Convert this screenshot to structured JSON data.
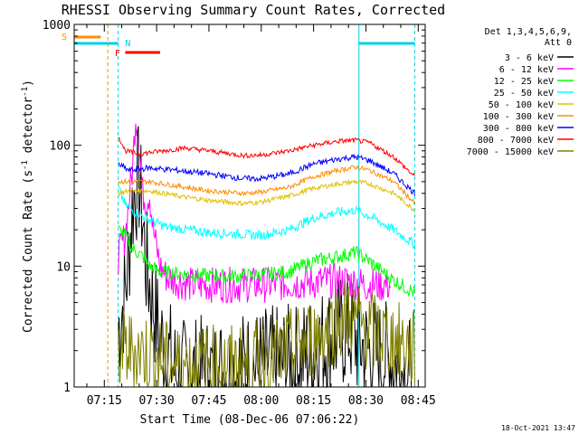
{
  "chart_data": {
    "type": "line",
    "title": "RHESSI Observing Summary Count Rates, Corrected",
    "xlabel": "Start Time (08-Dec-06 07:06:22)",
    "ylabel_main": "Corrected Count Rate (s",
    "ylabel_sup": "-1",
    "ylabel_tail": " detector",
    "ylabel_end": ")",
    "yscale": "log",
    "xlim": [
      "07:06:22",
      "08:47:00"
    ],
    "ylim": [
      1,
      1000
    ],
    "x_ticks": [
      "07:15",
      "07:30",
      "07:45",
      "08:00",
      "08:15",
      "08:30",
      "08:45"
    ],
    "y_ticks": [
      "1",
      "10",
      "100",
      "1000"
    ],
    "legend_header": [
      "Det 1,3,4,5,6,9,",
      "Att 0"
    ],
    "legend_position": "right",
    "footer": "18-Oct-2021 13:47",
    "annotations": [
      {
        "label": "S",
        "color": "#ff8c00"
      },
      {
        "label": "N",
        "color": "#00d0e0"
      },
      {
        "label": "F",
        "color": "#ff0000"
      }
    ],
    "state_bars": [
      {
        "label": "S",
        "start": "07:06:22",
        "end": "07:14:00",
        "color": "#ff8c00"
      },
      {
        "label": "N",
        "start": "07:06:22",
        "end": "07:19:00",
        "color": "#00d0e0"
      },
      {
        "label": "N",
        "start": "08:28:00",
        "end": "08:44:00",
        "color": "#00d0e0"
      },
      {
        "label": "F",
        "start": "07:21:00",
        "end": "07:31:00",
        "color": "#ff0000"
      }
    ],
    "vlines": [
      {
        "time": "07:06:22",
        "color": "#00d0e0",
        "style": "solid"
      },
      {
        "time": "07:16:00",
        "color": "#ff8c00",
        "style": "dashed"
      },
      {
        "time": "07:19:00",
        "color": "#00d0e0",
        "style": "dashed"
      },
      {
        "time": "08:28:00",
        "color": "#00d0e0",
        "style": "solid"
      },
      {
        "time": "08:44:00",
        "color": "#00d0e0",
        "style": "dashed"
      }
    ],
    "series": [
      {
        "name": "3 - 6 keV",
        "color": "#000000",
        "noise": 0.5,
        "points": [
          [
            "07:19",
            3
          ],
          [
            "07:21",
            6
          ],
          [
            "07:22",
            12
          ],
          [
            "07:23",
            30
          ],
          [
            "07:24",
            45
          ],
          [
            "07:25",
            50
          ],
          [
            "07:26",
            25
          ],
          [
            "07:27",
            10
          ],
          [
            "07:29",
            5
          ],
          [
            "07:31",
            2.5
          ],
          [
            "07:33",
            2
          ],
          [
            "07:36",
            1.2
          ],
          [
            "07:45",
            1.3
          ],
          [
            "08:00",
            1.5
          ],
          [
            "08:10",
            1.6
          ],
          [
            "08:20",
            2.5
          ],
          [
            "08:25",
            3
          ],
          [
            "08:27",
            2.5
          ],
          [
            "08:30",
            2
          ],
          [
            "08:38",
            1.6
          ],
          [
            "08:43",
            1.2
          ]
        ]
      },
      {
        "name": "6 - 12 keV",
        "color": "#ff00ff",
        "noise": 0.15,
        "points": [
          [
            "07:19",
            12
          ],
          [
            "07:21",
            18
          ],
          [
            "07:23",
            60
          ],
          [
            "07:24",
            180
          ],
          [
            "07:25",
            100
          ],
          [
            "07:26",
            40
          ],
          [
            "07:27",
            35
          ],
          [
            "07:28",
            40
          ],
          [
            "07:29",
            20
          ],
          [
            "07:31",
            10
          ],
          [
            "07:33",
            8
          ],
          [
            "07:40",
            7
          ],
          [
            "08:00",
            7
          ],
          [
            "08:20",
            7.5
          ],
          [
            "08:25",
            7.5
          ],
          [
            "08:30",
            7
          ],
          [
            "08:37",
            7
          ]
        ]
      },
      {
        "name": "12 - 25 keV",
        "color": "#00ff00",
        "noise": 0.06,
        "points": [
          [
            "07:19",
            20
          ],
          [
            "07:21",
            18
          ],
          [
            "07:23",
            14
          ],
          [
            "07:26",
            12
          ],
          [
            "07:28",
            10
          ],
          [
            "07:31",
            9
          ],
          [
            "07:40",
            8.5
          ],
          [
            "07:50",
            8.2
          ],
          [
            "08:00",
            8.5
          ],
          [
            "08:08",
            9
          ],
          [
            "08:15",
            11
          ],
          [
            "08:22",
            12
          ],
          [
            "08:27",
            13
          ],
          [
            "08:31",
            11
          ],
          [
            "08:37",
            8
          ],
          [
            "08:44",
            6
          ]
        ]
      },
      {
        "name": "25 - 50 keV",
        "color": "#00ffff",
        "noise": 0.04,
        "points": [
          [
            "07:19",
            45
          ],
          [
            "07:21",
            32
          ],
          [
            "07:24",
            28
          ],
          [
            "07:28",
            24
          ],
          [
            "07:33",
            21
          ],
          [
            "07:45",
            19
          ],
          [
            "08:00",
            18
          ],
          [
            "08:08",
            20
          ],
          [
            "08:15",
            25
          ],
          [
            "08:22",
            28
          ],
          [
            "08:27",
            29
          ],
          [
            "08:31",
            26
          ],
          [
            "08:38",
            20
          ],
          [
            "08:44",
            15
          ]
        ]
      },
      {
        "name": "50 - 100 keV",
        "color": "#e0c000",
        "noise": 0.02,
        "points": [
          [
            "07:19",
            40
          ],
          [
            "07:22",
            42
          ],
          [
            "07:28",
            42
          ],
          [
            "07:36",
            38
          ],
          [
            "07:45",
            35
          ],
          [
            "07:55",
            33
          ],
          [
            "08:00",
            34
          ],
          [
            "08:08",
            38
          ],
          [
            "08:15",
            44
          ],
          [
            "08:22",
            48
          ],
          [
            "08:27",
            50
          ],
          [
            "08:31",
            48
          ],
          [
            "08:38",
            40
          ],
          [
            "08:44",
            29
          ]
        ]
      },
      {
        "name": "100 - 300 keV",
        "color": "#ff8c00",
        "noise": 0.02,
        "points": [
          [
            "07:19",
            50
          ],
          [
            "07:22",
            50
          ],
          [
            "07:28",
            50
          ],
          [
            "07:36",
            46
          ],
          [
            "07:45",
            42
          ],
          [
            "07:55",
            40
          ],
          [
            "08:00",
            41
          ],
          [
            "08:08",
            45
          ],
          [
            "08:15",
            55
          ],
          [
            "08:22",
            62
          ],
          [
            "08:27",
            66
          ],
          [
            "08:31",
            62
          ],
          [
            "08:38",
            50
          ],
          [
            "08:44",
            33
          ]
        ]
      },
      {
        "name": "300 - 800 keV",
        "color": "#0000ff",
        "noise": 0.025,
        "points": [
          [
            "07:19",
            70
          ],
          [
            "07:22",
            62
          ],
          [
            "07:28",
            65
          ],
          [
            "07:36",
            62
          ],
          [
            "07:45",
            58
          ],
          [
            "07:55",
            53
          ],
          [
            "08:00",
            53
          ],
          [
            "08:08",
            58
          ],
          [
            "08:15",
            70
          ],
          [
            "08:22",
            77
          ],
          [
            "08:27",
            80
          ],
          [
            "08:31",
            75
          ],
          [
            "08:38",
            58
          ],
          [
            "08:44",
            40
          ]
        ]
      },
      {
        "name": "800 - 7000 keV",
        "color": "#ff0000",
        "noise": 0.02,
        "points": [
          [
            "07:19",
            120
          ],
          [
            "07:21",
            90
          ],
          [
            "07:25",
            85
          ],
          [
            "07:32",
            90
          ],
          [
            "07:38",
            95
          ],
          [
            "07:45",
            90
          ],
          [
            "07:55",
            82
          ],
          [
            "08:00",
            83
          ],
          [
            "08:08",
            90
          ],
          [
            "08:15",
            100
          ],
          [
            "08:22",
            108
          ],
          [
            "08:27",
            110
          ],
          [
            "08:31",
            105
          ],
          [
            "08:38",
            80
          ],
          [
            "08:44",
            55
          ]
        ]
      },
      {
        "name": "7000 - 15000 keV",
        "color": "#808000",
        "noise": 0.35,
        "points": [
          [
            "07:19",
            2
          ],
          [
            "07:25",
            2
          ],
          [
            "07:35",
            1.5
          ],
          [
            "07:45",
            1.5
          ],
          [
            "07:55",
            1.5
          ],
          [
            "08:05",
            1.8
          ],
          [
            "08:15",
            2.5
          ],
          [
            "08:22",
            3.5
          ],
          [
            "08:25",
            4
          ],
          [
            "08:30",
            3
          ],
          [
            "08:37",
            2.5
          ],
          [
            "08:44",
            2
          ]
        ]
      }
    ]
  }
}
